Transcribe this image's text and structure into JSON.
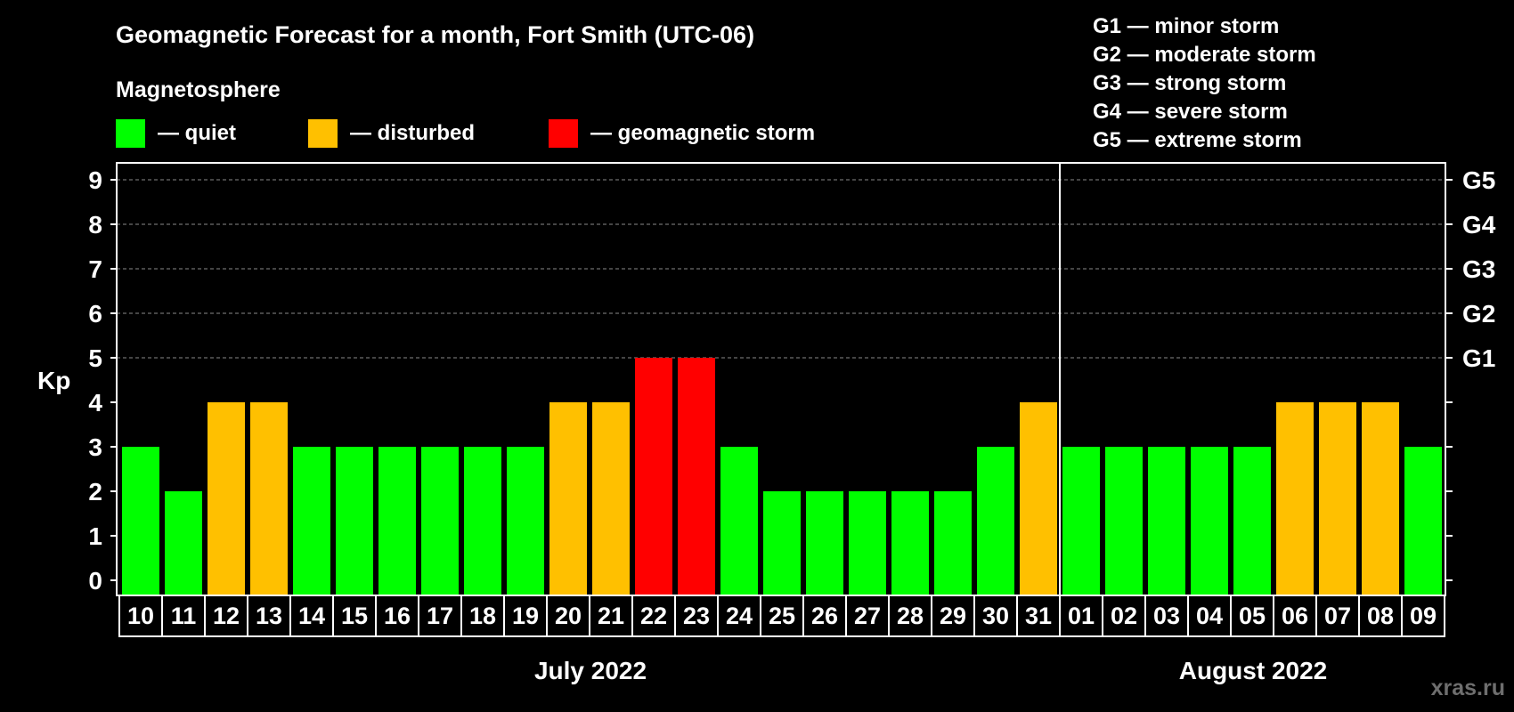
{
  "chart_data": {
    "type": "bar",
    "title": "Geomagnetic Forecast for a month, Fort Smith (UTC-06)",
    "ylabel": "Kp",
    "ylim": [
      0,
      9
    ],
    "yticks": [
      "0",
      "1",
      "2",
      "3",
      "4",
      "5",
      "6",
      "7",
      "8",
      "9"
    ],
    "right_ticks": [
      {
        "kp": 5,
        "label": "G1"
      },
      {
        "kp": 6,
        "label": "G2"
      },
      {
        "kp": 7,
        "label": "G3"
      },
      {
        "kp": 8,
        "label": "G4"
      },
      {
        "kp": 9,
        "label": "G5"
      }
    ],
    "grid": "dashed horizontal at Kp 5-9",
    "legend": {
      "heading": "Magnetosphere",
      "items": [
        {
          "key": "quiet",
          "label": "— quiet",
          "color": "#00ff00"
        },
        {
          "key": "disturbed",
          "label": "— disturbed",
          "color": "#ffc000"
        },
        {
          "key": "storm",
          "label": "— geomagnetic storm",
          "color": "#ff0000"
        }
      ]
    },
    "storm_scale": [
      "G1 — minor storm",
      "G2 — moderate storm",
      "G3 — strong storm",
      "G4 — severe storm",
      "G5 — extreme storm"
    ],
    "months": [
      {
        "label": "July 2022",
        "days": 22
      },
      {
        "label": "August 2022",
        "days": 9
      }
    ],
    "categories": [
      "10",
      "11",
      "12",
      "13",
      "14",
      "15",
      "16",
      "17",
      "18",
      "19",
      "20",
      "21",
      "22",
      "23",
      "24",
      "25",
      "26",
      "27",
      "28",
      "29",
      "30",
      "31",
      "01",
      "02",
      "03",
      "04",
      "05",
      "06",
      "07",
      "08",
      "09"
    ],
    "values": [
      3,
      2,
      4,
      4,
      3,
      3,
      3,
      3,
      3,
      3,
      4,
      4,
      5,
      5,
      3,
      2,
      2,
      2,
      2,
      2,
      3,
      4,
      3,
      3,
      3,
      3,
      3,
      4,
      4,
      4,
      3
    ],
    "status": [
      "quiet",
      "quiet",
      "disturbed",
      "disturbed",
      "quiet",
      "quiet",
      "quiet",
      "quiet",
      "quiet",
      "quiet",
      "disturbed",
      "disturbed",
      "storm",
      "storm",
      "quiet",
      "quiet",
      "quiet",
      "quiet",
      "quiet",
      "quiet",
      "quiet",
      "disturbed",
      "quiet",
      "quiet",
      "quiet",
      "quiet",
      "quiet",
      "disturbed",
      "disturbed",
      "disturbed",
      "quiet"
    ]
  },
  "watermark": "xras.ru"
}
